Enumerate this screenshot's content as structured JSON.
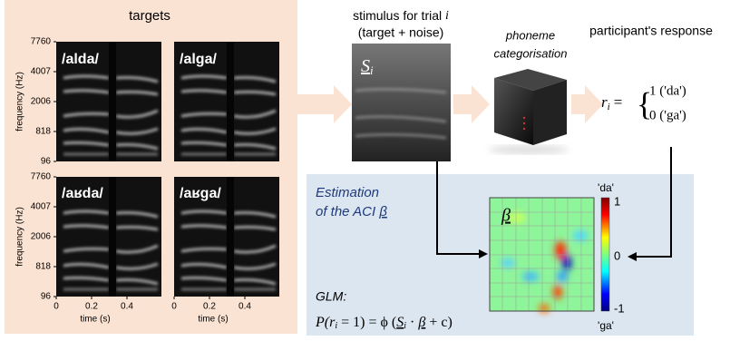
{
  "targets": {
    "title": "targets",
    "panels": [
      "/alda/",
      "/alga/",
      "/aʁda/",
      "/aʁga/"
    ],
    "y_label": "frequency (Hz)",
    "y_ticks": [
      "7760",
      "4007",
      "2006",
      "818",
      "96"
    ],
    "x_label": "time (s)",
    "x_ticks": [
      "0",
      "0.2",
      "0.4"
    ]
  },
  "stimulus": {
    "title": "stimulus for trial",
    "title_var": "i",
    "subtitle": "(target + noise)",
    "symbol": "S",
    "symbol_sub": "i"
  },
  "categorisation": {
    "line1": "phoneme",
    "line2": "categorisation"
  },
  "response": {
    "title": "participant's response",
    "lhs": "r",
    "lhs_sub": "i",
    "eq": "=",
    "case1": "1 ('da')",
    "case0": "0 ('ga')"
  },
  "estimation": {
    "line1": "Estimation",
    "line2": "of the ACI",
    "symbol": "β",
    "colorbar_top": "'da'",
    "colorbar_bottom": "'ga'",
    "colorbar_ticks": [
      "1",
      "0",
      "-1"
    ],
    "glm_label": "GLM:",
    "glm_equation": [
      "P(r",
      "i",
      " = 1) =  ϕ (",
      "S",
      "i",
      " · ",
      "β",
      " + c)"
    ]
  }
}
